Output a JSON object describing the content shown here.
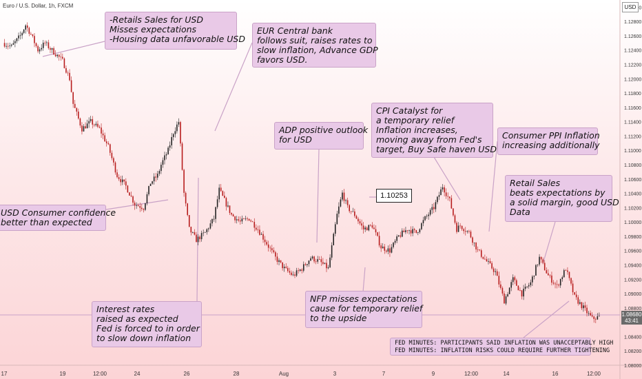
{
  "header": {
    "symbol": "Euro / U.S. Dollar, 1h, FXCM"
  },
  "currency_badge": "USD",
  "last_price": {
    "value": "1.08680",
    "countdown": "43:41"
  },
  "price_label": "1.10253",
  "colors": {
    "up": "#222222",
    "down": "#b71c1c",
    "callout_bg": "#e9c9e7",
    "callout_border": "#c9a2c7",
    "line": "#c9a2c7"
  },
  "callouts": [
    {
      "id": "retail-sales-1",
      "lines": [
        "-Retails Sales for USD",
        "Misses expectations",
        "-Housing data unfavorable USD"
      ]
    },
    {
      "id": "eur-central-bank",
      "lines": [
        "EUR Central bank",
        "follows suit, raises rates to",
        "slow inflation, Advance GDP",
        "favors USD."
      ]
    },
    {
      "id": "consumer-confidence",
      "lines": [
        "USD Consumer confidence",
        "better than expected"
      ]
    },
    {
      "id": "interest-rates",
      "lines": [
        "Interest rates",
        "raised as expected",
        "Fed is forced to in order",
        "to slow down inflation"
      ]
    },
    {
      "id": "adp",
      "lines": [
        "ADP positive outlook",
        "for USD"
      ]
    },
    {
      "id": "cpi",
      "lines": [
        "CPI Catalyst for",
        "a temporary relief",
        "Inflation increases,",
        "moving away from Fed's",
        "target, Buy Safe haven USD?"
      ]
    },
    {
      "id": "ppi",
      "lines": [
        "Consumer PPI Inflation",
        "increasing additionally"
      ]
    },
    {
      "id": "retail-sales-2",
      "lines": [
        "Retail Sales",
        "beats expectations by",
        "a solid margin, good USD",
        "Data"
      ]
    },
    {
      "id": "nfp",
      "lines": [
        "NFP misses expectations",
        "cause for temporary relief",
        "to the upside"
      ]
    },
    {
      "id": "fed-minutes",
      "lines": [
        "FED MINUTES: PARTICIPANTS SAID INFLATION WAS UNACCEPTABLY HIGH",
        "FED MINUTES: INFLATION RISKS COULD REQUIRE FURTHER TIGHTENING"
      ]
    }
  ],
  "chart_data": {
    "type": "line",
    "title": "Euro / U.S. Dollar, 1h, FXCM",
    "xlabel": "",
    "ylabel": "",
    "ylim": [
      1.08,
      1.131
    ],
    "grid": false,
    "y_ticks": [
      "1.13000",
      "1.12800",
      "1.12600",
      "1.12400",
      "1.12200",
      "1.12000",
      "1.11800",
      "1.11600",
      "1.11400",
      "1.11200",
      "1.11000",
      "1.10800",
      "1.10600",
      "1.10400",
      "1.10200",
      "1.10000",
      "1.09800",
      "1.09600",
      "1.09400",
      "1.09200",
      "1.09000",
      "1.08800",
      "1.08600",
      "1.08400",
      "1.08200",
      "1.08000"
    ],
    "x_ticks": [
      "17",
      "19",
      "12:00",
      "24",
      "26",
      "28",
      "Aug",
      "3",
      "7",
      "9",
      "12:00",
      "14",
      "16",
      "12:00"
    ],
    "series": [
      {
        "x": [
          17,
          17.5,
          18,
          18.3,
          18.6,
          19,
          19.4,
          19.7,
          20,
          20.4,
          20.8,
          21,
          21.5,
          22,
          22.5,
          23,
          23.5,
          24,
          24.5,
          25,
          25.4,
          25.8,
          26,
          26.4,
          26.7,
          27,
          27.3,
          27.6,
          28,
          28.5,
          29,
          29.3,
          29.7,
          30,
          30.5,
          31,
          31.5,
          32,
          32.5,
          33,
          33.5,
          34,
          34.5,
          35,
          35.5,
          36,
          36.3,
          36.6,
          37,
          37.5,
          38,
          38.5,
          39,
          39.5,
          40,
          40.5,
          41,
          41.5,
          42,
          42.4,
          42.8,
          43,
          43.5,
          44,
          44.5,
          45,
          45.5,
          46,
          46.5,
          47,
          47.5,
          48,
          48.5,
          49,
          49.5,
          50,
          50.5,
          51
        ],
        "y": [
          1.125,
          1.1245,
          1.126,
          1.1275,
          1.1262,
          1.124,
          1.125,
          1.1242,
          1.1235,
          1.1225,
          1.12,
          1.1165,
          1.113,
          1.114,
          1.113,
          1.1105,
          1.1065,
          1.105,
          1.1025,
          1.102,
          1.1055,
          1.1065,
          1.108,
          1.11,
          1.1125,
          1.114,
          1.104,
          1.099,
          1.0975,
          1.0985,
          1.1005,
          1.1045,
          1.1025,
          1.101,
          1.1,
          1.1005,
          1.099,
          1.097,
          1.095,
          1.0935,
          1.0925,
          1.0935,
          1.095,
          1.0945,
          1.0935,
          1.101,
          1.104,
          1.102,
          1.101,
          1.099,
          1.0995,
          1.0965,
          1.096,
          1.098,
          1.099,
          1.0985,
          1.1005,
          1.102,
          1.105,
          1.103,
          1.099,
          1.0995,
          1.0985,
          1.096,
          1.0945,
          1.093,
          1.089,
          1.092,
          1.09,
          1.0915,
          1.095,
          1.0925,
          1.091,
          1.0935,
          1.0895,
          1.088,
          1.0865,
          1.0868
        ]
      }
    ]
  }
}
